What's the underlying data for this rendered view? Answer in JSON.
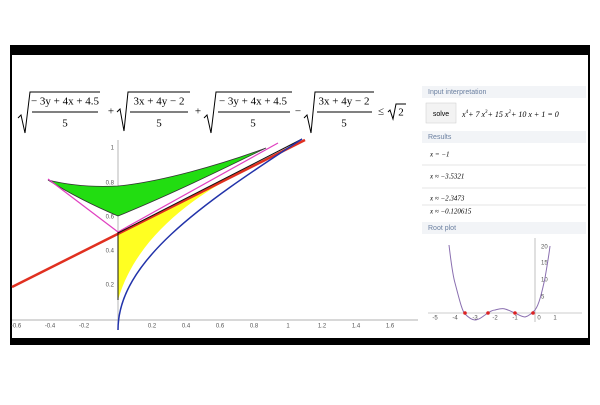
{
  "formula": {
    "terms": [
      {
        "numerator": "− 3y + 4x + 4.5",
        "denominator": "5"
      },
      {
        "numerator": "3x + 4y − 2",
        "denominator": "5"
      },
      {
        "numerator": "− 3y + 4x + 4.5",
        "denominator": "5"
      },
      {
        "numerator": "3x + 4y − 2",
        "denominator": "5"
      }
    ],
    "operators": [
      "+",
      "+",
      "−",
      "≤"
    ],
    "rhs": "2"
  },
  "graph": {
    "x_tick_labels": [
      "-0.6",
      "-0.4",
      "-0.2",
      "0.2",
      "0.4",
      "0.6",
      "0.8",
      "1",
      "1.2",
      "1.4",
      "1.6"
    ],
    "y_tick_labels": [
      "1",
      "0.8",
      "0.6",
      "0.4",
      "0.2"
    ]
  },
  "panel": {
    "input_header": "Input interpretation",
    "solve": "solve",
    "equation": [
      "x",
      "4",
      "+ 7 x",
      "3",
      "+ 15 x",
      "2",
      "+ 10 x + 1 = 0"
    ],
    "results_header": "Results",
    "results": [
      "x = −1",
      "x ≈ −3.5321",
      "x ≈ −2.3473",
      "x ≈ −0.120615"
    ],
    "plot_header": "Root plot",
    "plot_x_ticks": [
      "-5",
      "-4",
      "-3",
      "-2",
      "-1",
      "0",
      "1"
    ],
    "plot_y_ticks": [
      "20",
      "15",
      "10",
      "5"
    ]
  }
}
